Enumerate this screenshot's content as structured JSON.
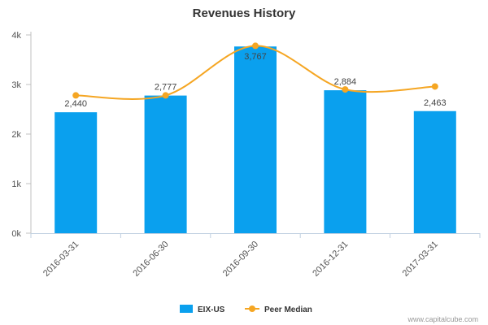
{
  "chart_data": {
    "type": "bar",
    "title": "Revenues History",
    "categories": [
      "2016-03-31",
      "2016-06-30",
      "2016-09-30",
      "2016-12-31",
      "2017-03-31"
    ],
    "series": [
      {
        "name": "EIX-US",
        "kind": "bar",
        "color": "#0aa0ee",
        "values": [
          2440,
          2777,
          3767,
          2884,
          2463
        ],
        "data_labels": [
          "2,440",
          "2,777",
          "3,767",
          "2,884",
          "2,463"
        ]
      },
      {
        "name": "Peer Median",
        "kind": "line",
        "color": "#f5a623",
        "values": [
          2780,
          2780,
          3780,
          2900,
          2960
        ]
      }
    ],
    "ylim": [
      0,
      4000
    ],
    "yticks": [
      0,
      1000,
      2000,
      3000,
      4000
    ],
    "ytick_labels": [
      "0k",
      "1k",
      "2k",
      "3k",
      "4k"
    ],
    "xlabel": "",
    "ylabel": "",
    "grid": false,
    "legend_position": "bottom-center"
  },
  "credit": "www.capitalcube.com"
}
